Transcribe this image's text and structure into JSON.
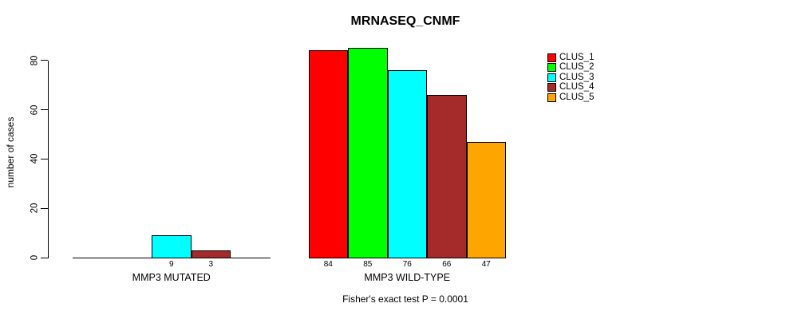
{
  "title": "MRNASEQ_CNMF",
  "y_axis_label": "number of cases",
  "caption": "Fisher's exact test P = 0.0001",
  "chart_data": {
    "type": "bar",
    "title": "MRNASEQ_CNMF",
    "xlabel": "",
    "ylabel": "number of cases",
    "categories": [
      "MMP3 MUTATED",
      "MMP3 WILD-TYPE"
    ],
    "series": [
      {
        "name": "CLUS_1",
        "color": "#FF0000",
        "values": [
          0,
          84
        ]
      },
      {
        "name": "CLUS_2",
        "color": "#00FF00",
        "values": [
          0,
          85
        ]
      },
      {
        "name": "CLUS_3",
        "color": "#00FFFF",
        "values": [
          9,
          76
        ]
      },
      {
        "name": "CLUS_4",
        "color": "#A52A2A",
        "values": [
          3,
          66
        ]
      },
      {
        "name": "CLUS_5",
        "color": "#FFA500",
        "values": [
          0,
          47
        ]
      }
    ],
    "bar_value_labels": [
      [
        null,
        null,
        9,
        3,
        null
      ],
      [
        84,
        85,
        76,
        66,
        47
      ]
    ],
    "yticks": [
      0,
      20,
      40,
      60,
      80
    ],
    "ylim": [
      0,
      85.5
    ],
    "grid": false,
    "legend_position": "top-right",
    "legend_entries": [
      "CLUS_1",
      "CLUS_2",
      "CLUS_3",
      "CLUS_4",
      "CLUS_5"
    ],
    "annotation": "Fisher's exact test P = 0.0001",
    "bar_border_color": "#000000",
    "background_color": "#FFFFFF"
  }
}
